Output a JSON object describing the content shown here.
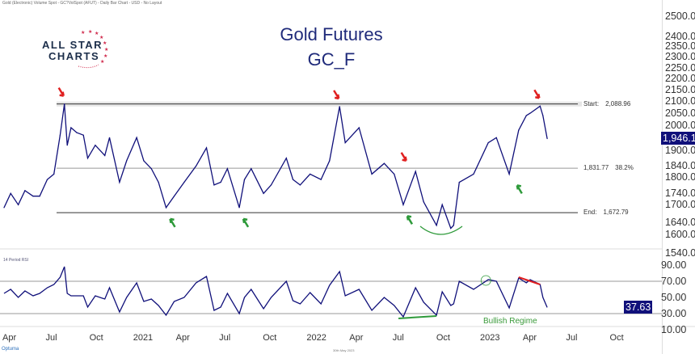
{
  "header": "Gold (Electronic) Volume Spot - GC?VolSpot (AFUT) - Daily Bar Chart - USD - No Layout",
  "logo": {
    "line1": "ALL STAR",
    "line2": "CHARTS"
  },
  "chart_data": [
    {
      "type": "line",
      "title": "Gold Futures",
      "subtitle": "GC_F",
      "yscale": "log",
      "ylim": [
        1540,
        2550
      ],
      "y_ticks": [
        "2500.0",
        "2400.0",
        "2350.0",
        "2300.0",
        "2250.0",
        "2200.0",
        "2150.0",
        "2100.0",
        "2050.0",
        "2000.0",
        "1900.0",
        "1840.0",
        "1800.0",
        "1740.0",
        "1700.0",
        "1640.0",
        "1600.0",
        "1540.0"
      ],
      "current_value": "1,946.1",
      "x": [
        "2020-04-01",
        "2020-04-15",
        "2020-05-01",
        "2020-05-15",
        "2020-06-01",
        "2020-06-15",
        "2020-07-01",
        "2020-07-15",
        "2020-07-28",
        "2020-08-06",
        "2020-08-12",
        "2020-08-20",
        "2020-09-01",
        "2020-09-15",
        "2020-09-24",
        "2020-10-10",
        "2020-10-30",
        "2020-11-09",
        "2020-11-30",
        "2020-12-15",
        "2021-01-05",
        "2021-01-20",
        "2021-02-05",
        "2021-02-20",
        "2021-03-08",
        "2021-03-25",
        "2021-04-15",
        "2021-05-10",
        "2021-06-01",
        "2021-06-17",
        "2021-07-01",
        "2021-07-15",
        "2021-08-09",
        "2021-08-20",
        "2021-09-03",
        "2021-09-29",
        "2021-10-15",
        "2021-11-16",
        "2021-11-30",
        "2021-12-15",
        "2022-01-05",
        "2022-01-28",
        "2022-02-15",
        "2022-03-08",
        "2022-03-20",
        "2022-04-18",
        "2022-05-15",
        "2022-06-10",
        "2022-07-01",
        "2022-07-20",
        "2022-08-15",
        "2022-09-01",
        "2022-09-28",
        "2022-10-10",
        "2022-10-28",
        "2022-11-03",
        "2022-11-15",
        "2022-12-15",
        "2023-01-15",
        "2023-02-01",
        "2023-02-28",
        "2023-03-20",
        "2023-04-05",
        "2023-04-13",
        "2023-05-04",
        "2023-05-10",
        "2023-05-19"
      ],
      "values": [
        1690,
        1740,
        1700,
        1750,
        1730,
        1730,
        1790,
        1810,
        1960,
        2089,
        1920,
        1990,
        1970,
        1960,
        1870,
        1920,
        1880,
        1950,
        1780,
        1860,
        1950,
        1860,
        1830,
        1780,
        1690,
        1730,
        1780,
        1840,
        1910,
        1770,
        1780,
        1830,
        1690,
        1790,
        1830,
        1740,
        1770,
        1870,
        1790,
        1770,
        1810,
        1790,
        1860,
        2078,
        1930,
        1990,
        1810,
        1850,
        1810,
        1700,
        1820,
        1710,
        1630,
        1700,
        1620,
        1630,
        1780,
        1810,
        1930,
        1950,
        1810,
        1980,
        2040,
        2050,
        2080,
        2040,
        1946.1
      ],
      "levels": [
        {
          "label": "Start:",
          "value": 2088.96,
          "text": "2,088.96"
        },
        {
          "label": "",
          "value": 1831.77,
          "text": "1,831.77",
          "pct": "38.2%"
        },
        {
          "label": "End:",
          "value": 1672.79,
          "text": "1,672.79"
        }
      ],
      "annotations": {
        "red_arrows": [
          "2020-08-06",
          "2022-03-08",
          "2022-07-28",
          "2023-05-04"
        ],
        "green_arrows": [
          "2021-03-08",
          "2021-08-09",
          "2022-07-20",
          "2023-03-08"
        ]
      }
    },
    {
      "type": "line",
      "title": "14 Period RSI",
      "ylim": [
        5,
        95
      ],
      "y_ticks": [
        "90.00",
        "70.00",
        "50.00",
        "30.00",
        "10.00"
      ],
      "reference_lines": [
        70,
        30
      ],
      "current_value": "37.63",
      "x_ticks": [
        "Apr",
        "Jul",
        "Oct",
        "2021",
        "Apr",
        "Jul",
        "Oct",
        "2022",
        "Apr",
        "Jul",
        "Oct",
        "2023",
        "Apr",
        "Jul",
        "Oct"
      ],
      "values": [
        55,
        60,
        50,
        58,
        52,
        55,
        62,
        66,
        75,
        88,
        55,
        52,
        52,
        52,
        38,
        52,
        48,
        62,
        32,
        50,
        68,
        45,
        48,
        40,
        28,
        45,
        50,
        68,
        76,
        34,
        38,
        55,
        30,
        50,
        60,
        36,
        50,
        70,
        46,
        42,
        56,
        42,
        65,
        82,
        52,
        60,
        34,
        50,
        40,
        26,
        62,
        44,
        28,
        57,
        40,
        42,
        70,
        60,
        72,
        70,
        37,
        74,
        68,
        72,
        66,
        50,
        37.63
      ],
      "annotation": "Bullish Regime"
    }
  ],
  "footer": {
    "brand": "Optuma",
    "date": "30th May 2023"
  },
  "colors": {
    "line": "#10107a",
    "up_arrow": "#2e9a3a",
    "down_arrow": "#e02020",
    "accent": "#1f2a7a"
  }
}
